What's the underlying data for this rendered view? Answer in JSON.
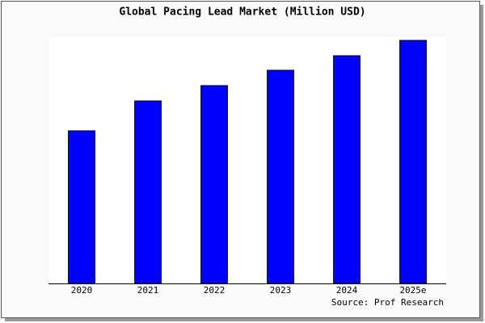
{
  "chart_data": {
    "type": "bar",
    "title": "Global Pacing Lead Market (Million USD)",
    "categories": [
      "2020",
      "2021",
      "2022",
      "2023",
      "2024",
      "2025e"
    ],
    "values": [
      189,
      226,
      245,
      264,
      282,
      301
    ],
    "color": "#0000ff",
    "ylim": [
      0,
      304
    ],
    "source": "Source: Prof Research"
  }
}
